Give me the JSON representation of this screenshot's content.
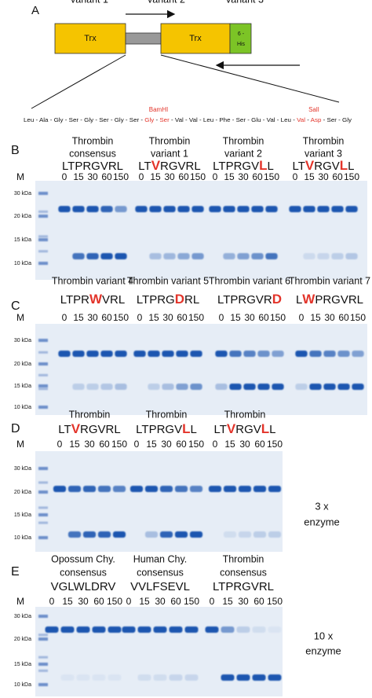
{
  "panel_a": {
    "label": "A",
    "domains": [
      "Trx",
      "Trx"
    ],
    "tag": [
      "6 -",
      "His"
    ],
    "sites": [
      "BamHI",
      "SalI"
    ],
    "sequence": {
      "separator": " - ",
      "residues": [
        {
          "text": "Leu"
        },
        {
          "text": "Ala"
        },
        {
          "text": "Gly"
        },
        {
          "text": "Ser"
        },
        {
          "text": "Gly"
        },
        {
          "text": "Ser"
        },
        {
          "text": "Gly"
        },
        {
          "text": "Ser"
        },
        {
          "text": "Gly",
          "highlight": true
        },
        {
          "text": "Ser",
          "highlight": true
        },
        {
          "text": "Val"
        },
        {
          "text": "Val"
        },
        {
          "text": "Leu"
        },
        {
          "text": "Phe"
        },
        {
          "text": "Ser"
        },
        {
          "text": "Glu"
        },
        {
          "text": "Val"
        },
        {
          "text": "Leu"
        },
        {
          "text": "Val",
          "highlight": true
        },
        {
          "text": "Asp",
          "highlight": true
        },
        {
          "text": "Ser"
        },
        {
          "text": "Gly"
        }
      ]
    }
  },
  "panels": [
    {
      "label": "B",
      "lane_marker": "M",
      "markers": [
        "30 kDa",
        "20 kDa",
        "15 kDa",
        "10 kDa"
      ],
      "groups": [
        {
          "title": [
            "Thrombin",
            "consensus"
          ],
          "sequence": [
            {
              "text": "LTPRGVRL"
            }
          ],
          "timepoints": [
            0,
            15,
            30,
            60,
            150
          ]
        },
        {
          "title": [
            "Thrombin",
            "variant 1"
          ],
          "sequence": [
            {
              "text": "LT"
            },
            {
              "text": "V",
              "highlight": true
            },
            {
              "text": "RGVRL"
            }
          ],
          "timepoints": [
            0,
            15,
            30,
            60,
            150
          ]
        },
        {
          "title": [
            "Thrombin",
            "variant 2"
          ],
          "sequence": [
            {
              "text": "LTPRGV"
            },
            {
              "text": "L",
              "highlight": true
            },
            {
              "text": "L"
            }
          ],
          "timepoints": [
            0,
            15,
            30,
            60,
            150
          ]
        },
        {
          "title": [
            "Thrombin",
            "variant 3"
          ],
          "sequence": [
            {
              "text": "LT"
            },
            {
              "text": "V",
              "highlight": true
            },
            {
              "text": "RGV"
            },
            {
              "text": "L",
              "highlight": true
            },
            {
              "text": "L"
            }
          ],
          "timepoints": [
            0,
            15,
            30,
            60,
            150
          ]
        }
      ]
    },
    {
      "label": "C",
      "lane_marker": "M",
      "markers": [
        "30 kDa",
        "20 kDa",
        "15 kDa",
        "10 kDa"
      ],
      "groups": [
        {
          "title": [
            "Thrombin variant 4"
          ],
          "sequence": [
            {
              "text": "LTPR"
            },
            {
              "text": "W",
              "highlight": true
            },
            {
              "text": "VRL"
            }
          ],
          "timepoints": [
            0,
            15,
            30,
            60,
            150
          ]
        },
        {
          "title": [
            "Thrombin variant 5"
          ],
          "sequence": [
            {
              "text": "LTPRG"
            },
            {
              "text": "D",
              "highlight": true
            },
            {
              "text": "RL"
            }
          ],
          "timepoints": [
            0,
            15,
            30,
            60,
            150
          ]
        },
        {
          "title": [
            "Thrombin variant 6"
          ],
          "sequence": [
            {
              "text": "LTPRGVR"
            },
            {
              "text": "D",
              "highlight": true
            }
          ],
          "timepoints": [
            0,
            15,
            30,
            60,
            150
          ]
        },
        {
          "title": [
            "Thrombin variant 7"
          ],
          "sequence": [
            {
              "text": "L"
            },
            {
              "text": "W",
              "highlight": true
            },
            {
              "text": "PRGVRL"
            }
          ],
          "timepoints": [
            0,
            15,
            30,
            60,
            150
          ]
        }
      ]
    },
    {
      "label": "D",
      "lane_marker": "M",
      "markers": [
        "30 kDa",
        "20 kDa",
        "15 kDa",
        "10 kDa"
      ],
      "note": [
        "3 x",
        "enzyme"
      ],
      "groups": [
        {
          "title": [
            "Thrombin",
            "variant 1"
          ],
          "sequence": [
            {
              "text": "LT"
            },
            {
              "text": "V",
              "highlight": true
            },
            {
              "text": "RGVRL"
            }
          ],
          "timepoints": [
            0,
            15,
            30,
            60,
            150
          ]
        },
        {
          "title": [
            "Thrombin",
            "variant 2"
          ],
          "sequence": [
            {
              "text": "LTPRGV"
            },
            {
              "text": "L",
              "highlight": true
            },
            {
              "text": "L"
            }
          ],
          "timepoints": [
            0,
            15,
            30,
            60,
            150
          ]
        },
        {
          "title": [
            "Thrombin",
            "variant 3"
          ],
          "sequence": [
            {
              "text": "LT"
            },
            {
              "text": "V",
              "highlight": true
            },
            {
              "text": "RGV"
            },
            {
              "text": "L",
              "highlight": true
            },
            {
              "text": "L"
            }
          ],
          "timepoints": [
            0,
            15,
            30,
            60,
            150
          ]
        }
      ]
    },
    {
      "label": "E",
      "lane_marker": "M",
      "markers": [
        "30 kDa",
        "20 kDa",
        "15 kDa",
        "10 kDa"
      ],
      "note": [
        "10 x",
        "enzyme"
      ],
      "groups": [
        {
          "title": [
            "Opossum Chy.",
            "consensus"
          ],
          "sequence": [
            {
              "text": "VGLWLDRV"
            }
          ],
          "timepoints": [
            0,
            15,
            30,
            60,
            150
          ]
        },
        {
          "title": [
            "Human Chy.",
            "consensus"
          ],
          "sequence": [
            {
              "text": "VVLFSEVL"
            }
          ],
          "timepoints": [
            0,
            15,
            30,
            60,
            150
          ]
        },
        {
          "title": [
            "Thrombin",
            "consensus"
          ],
          "sequence": [
            {
              "text": "LTPRGVRL"
            }
          ],
          "timepoints": [
            0,
            15,
            30,
            60,
            150
          ]
        }
      ]
    }
  ]
}
